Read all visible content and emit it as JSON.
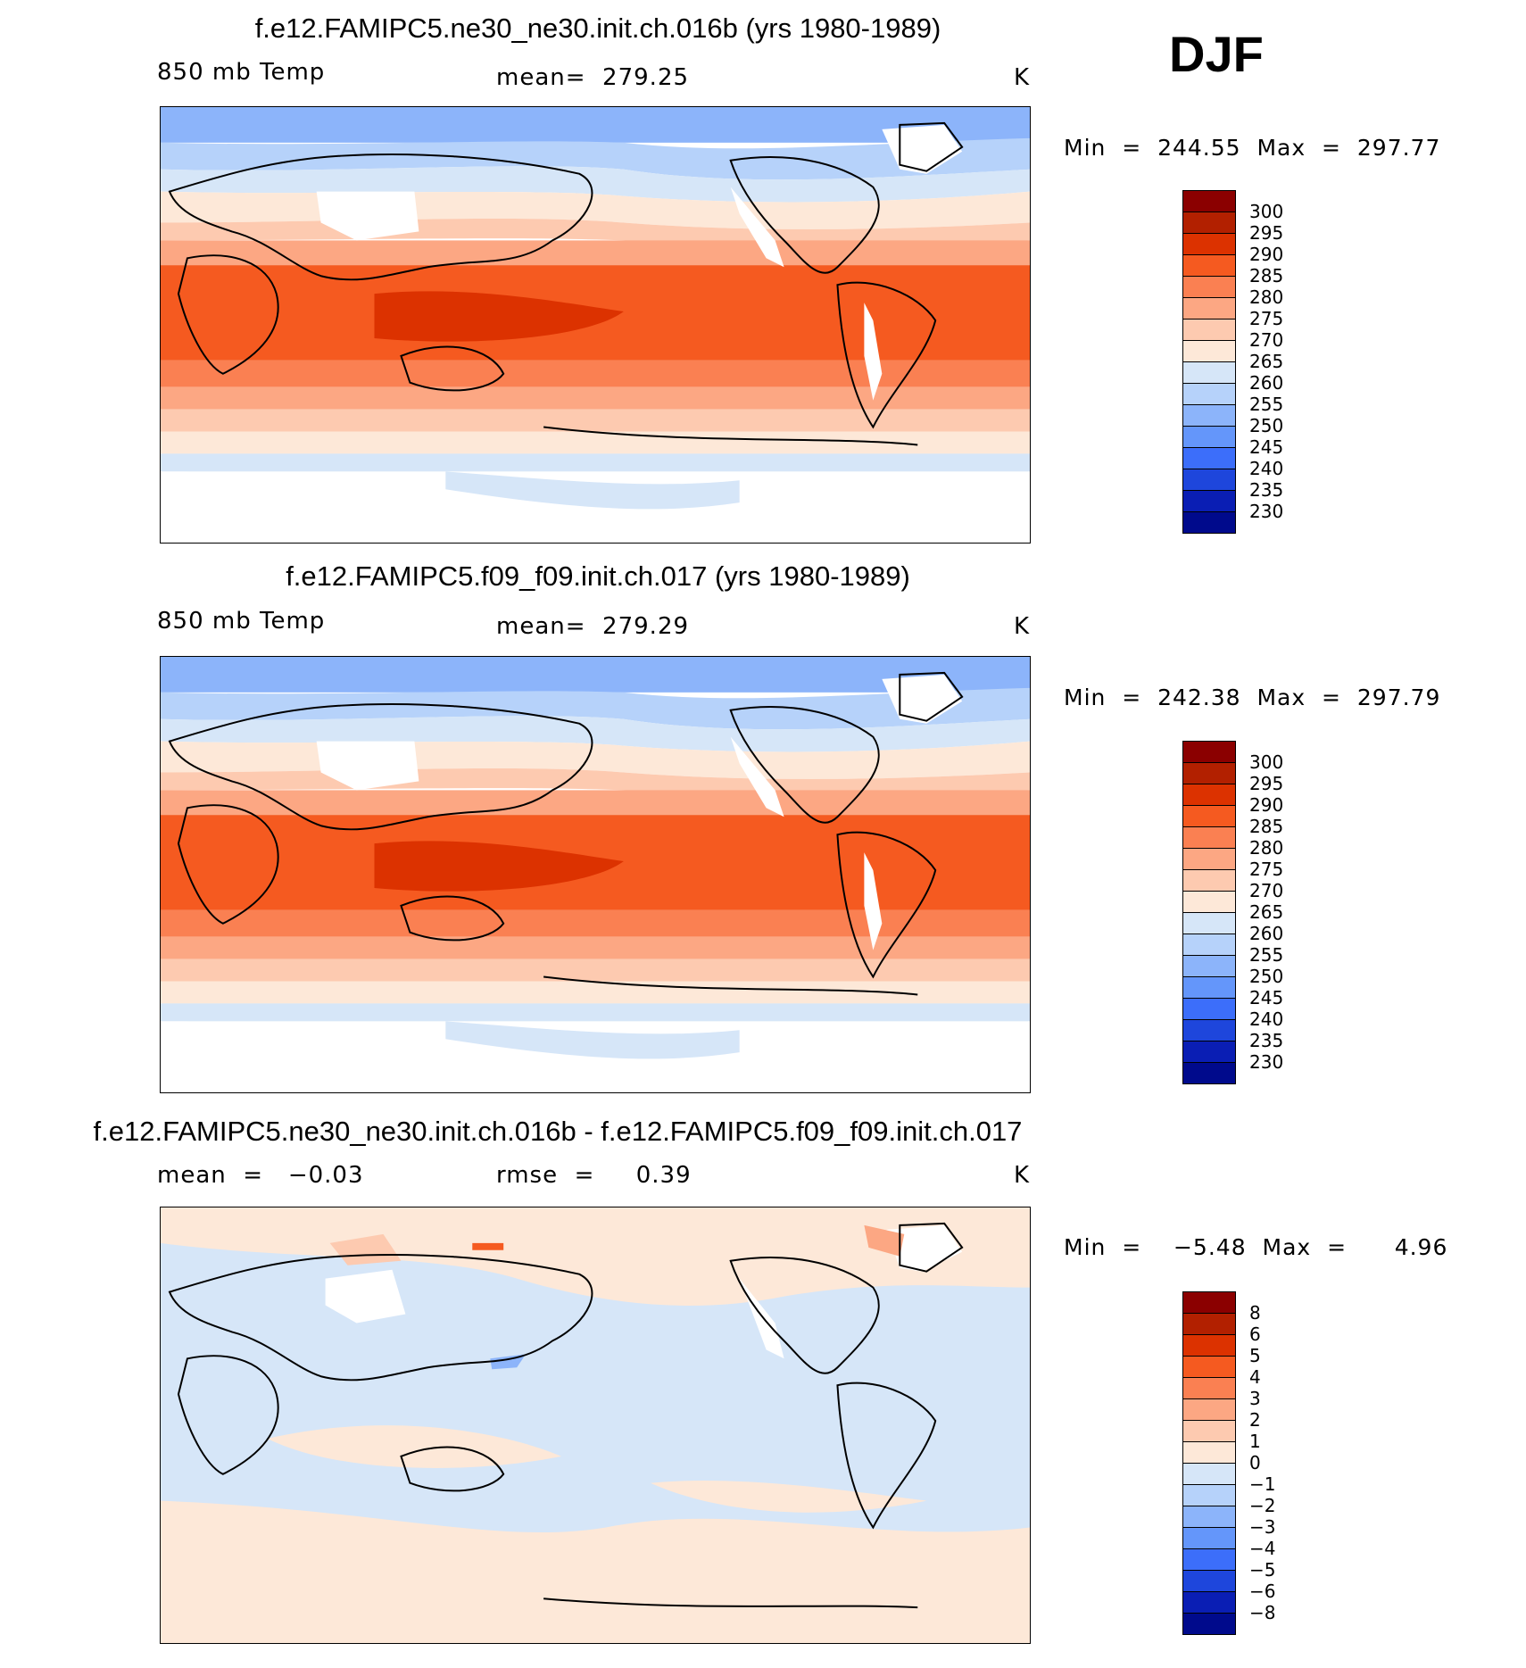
{
  "season": "DJF",
  "panels": [
    {
      "title": "f.e12.FAMIPC5.ne30_ne30.init.ch.016b (yrs 1980-1989)",
      "left_label": "850 mb Temp",
      "center_label": "mean=  279.25",
      "units": "K",
      "minmax": "Min  =  244.55  Max  =  297.77"
    },
    {
      "title": "f.e12.FAMIPC5.f09_f09.init.ch.017 (yrs 1980-1989)",
      "left_label": "850 mb Temp",
      "center_label": "mean=  279.29",
      "units": "K",
      "minmax": "Min  =  242.38  Max  =  297.79"
    },
    {
      "title": "f.e12.FAMIPC5.ne30_ne30.init.ch.016b - f.e12.FAMIPC5.f09_f09.init.ch.017",
      "left_label": "mean  =   −0.03",
      "center_label": "rmse  =     0.39",
      "units": "K",
      "minmax": "Min  =    −5.48  Max  =      4.96"
    }
  ],
  "temp_legend": {
    "labels": [
      "300",
      "295",
      "290",
      "285",
      "280",
      "275",
      "270",
      "265",
      "260",
      "255",
      "250",
      "245",
      "240",
      "235",
      "230"
    ],
    "colors": [
      "#8b0000",
      "#b22000",
      "#dc3200",
      "#f55a20",
      "#fa8052",
      "#fca783",
      "#fdcab0",
      "#fde8d8",
      "#d6e6f8",
      "#b6d2fa",
      "#8cb4fa",
      "#6496fa",
      "#3c6efa",
      "#1e46dc",
      "#0a1eb4",
      "#000a8c"
    ]
  },
  "diff_legend": {
    "labels": [
      "8",
      "6",
      "5",
      "4",
      "3",
      "2",
      "1",
      "0",
      "−1",
      "−2",
      "−3",
      "−4",
      "−5",
      "−6",
      "−8"
    ],
    "colors": [
      "#8b0000",
      "#b22000",
      "#dc3200",
      "#f55a20",
      "#fa8052",
      "#fca783",
      "#fdcab0",
      "#fde8d8",
      "#d6e6f8",
      "#b6d2fa",
      "#8cb4fa",
      "#6496fa",
      "#3c6efa",
      "#1e46dc",
      "#0a1eb4",
      "#000a8c"
    ]
  }
}
